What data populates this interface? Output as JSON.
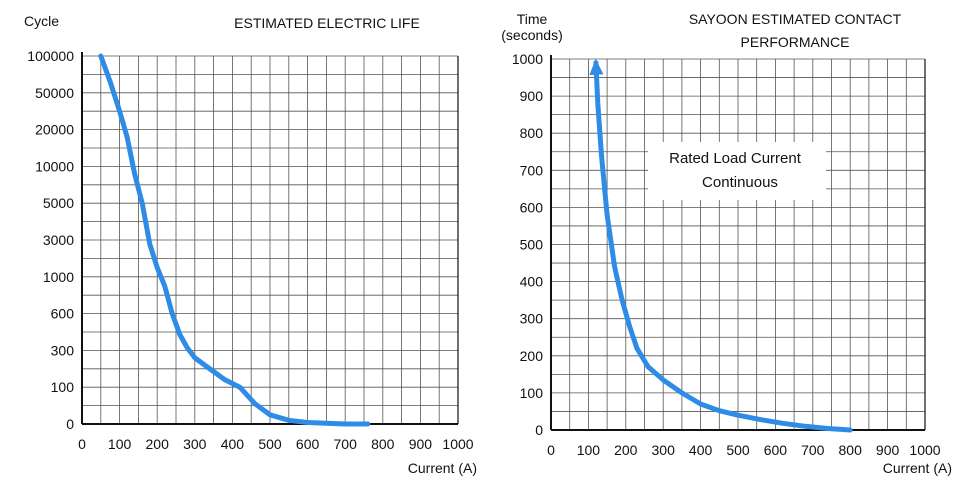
{
  "chart_data": [
    {
      "type": "line",
      "title": "ESTIMATED ELECTRIC LIFE",
      "ylabel": "Cycle",
      "xlabel": "Current (A)",
      "x_ticks": [
        "0",
        "100",
        "200",
        "300",
        "400",
        "500",
        "600",
        "700",
        "800",
        "900",
        "1000"
      ],
      "y_ticks": [
        "0",
        "100",
        "300",
        "600",
        "1000",
        "3000",
        "5000",
        "10000",
        "20000",
        "50000",
        "100000"
      ],
      "xlim": [
        0,
        1000
      ],
      "grid": true,
      "series": [
        {
          "color": "#2f8ce6",
          "x": [
            50,
            75,
            100,
            120,
            140,
            160,
            180,
            200,
            220,
            240,
            260,
            280,
            300,
            340,
            380,
            420,
            460,
            500,
            550,
            600,
            650,
            700,
            760
          ],
          "y": [
            100000,
            65000,
            35000,
            18000,
            9000,
            5000,
            2800,
            1500,
            900,
            600,
            430,
            320,
            260,
            200,
            140,
            100,
            55,
            25,
            10,
            4,
            2,
            0,
            0
          ]
        }
      ]
    },
    {
      "type": "line",
      "title": "SAYOON ESTIMATED CONTACT PERFORMANCE",
      "title_lines": [
        "SAYOON ESTIMATED CONTACT",
        "PERFORMANCE"
      ],
      "ylabel_lines": [
        "Time",
        "(seconds)"
      ],
      "xlabel": "Current (A)",
      "x_ticks": [
        "0",
        "100",
        "200",
        "300",
        "400",
        "500",
        "600",
        "700",
        "800",
        "900",
        "1000"
      ],
      "y_ticks": [
        "0",
        "100",
        "200",
        "300",
        "400",
        "500",
        "600",
        "700",
        "800",
        "900",
        "1000"
      ],
      "xlim": [
        0,
        1000
      ],
      "ylim": [
        0,
        1000
      ],
      "grid": true,
      "annotation": [
        "Rated Load Current",
        "Continuous"
      ],
      "series": [
        {
          "color": "#2f8ce6",
          "arrow": "start",
          "x": [
            120,
            125,
            135,
            150,
            170,
            190,
            210,
            230,
            260,
            300,
            350,
            400,
            450,
            500,
            560,
            620,
            680,
            740,
            800
          ],
          "y": [
            990,
            880,
            740,
            580,
            440,
            350,
            280,
            220,
            170,
            135,
            100,
            70,
            52,
            40,
            28,
            18,
            10,
            4,
            0
          ]
        }
      ]
    }
  ]
}
